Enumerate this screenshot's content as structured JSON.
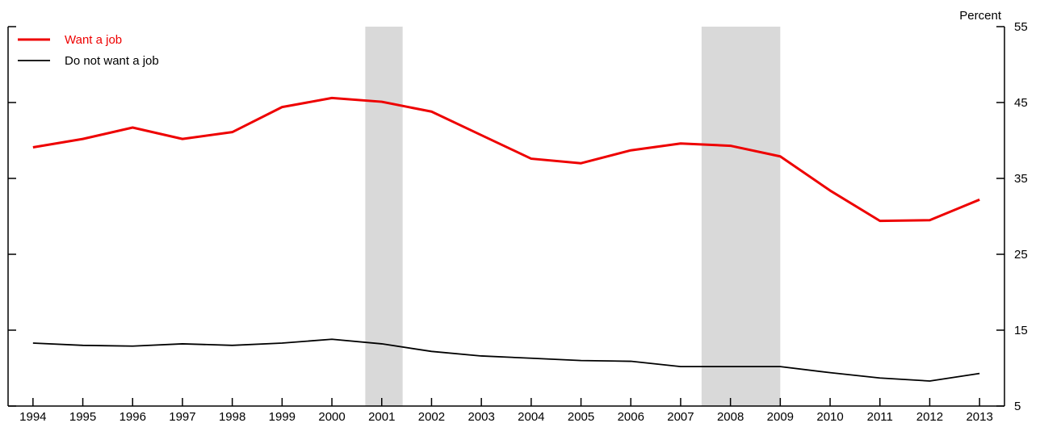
{
  "chart_data": {
    "type": "line",
    "y_axis_label": "Percent",
    "x": [
      1994,
      1995,
      1996,
      1997,
      1998,
      1999,
      2000,
      2001,
      2002,
      2003,
      2004,
      2005,
      2006,
      2007,
      2008,
      2009,
      2010,
      2011,
      2012,
      2013
    ],
    "xlim": [
      1993.5,
      2013.5
    ],
    "xticks": [
      1994,
      1995,
      1996,
      1997,
      1998,
      1999,
      2000,
      2001,
      2002,
      2003,
      2004,
      2005,
      2006,
      2007,
      2008,
      2009,
      2010,
      2011,
      2012,
      2013
    ],
    "ylim": [
      5,
      55
    ],
    "yticks": [
      5,
      15,
      25,
      35,
      45,
      55
    ],
    "grid": false,
    "legend": "upper left",
    "recessions": [
      [
        2000.67,
        2001.42
      ],
      [
        2007.42,
        2009.0
      ]
    ],
    "recession_color": "#d9d9d9",
    "series": [
      {
        "name": "Want a job",
        "color": "#ee0000",
        "width": 3,
        "values": [
          39.1,
          40.2,
          41.7,
          40.2,
          41.1,
          44.4,
          45.6,
          45.1,
          43.8,
          40.7,
          37.6,
          37.0,
          38.7,
          39.6,
          39.3,
          37.9,
          33.4,
          29.4,
          29.5,
          32.2
        ]
      },
      {
        "name": "Do not want a job",
        "color": "#000000",
        "width": 1.8,
        "values": [
          13.3,
          13.0,
          12.9,
          13.2,
          13.0,
          13.3,
          13.8,
          13.2,
          12.2,
          11.6,
          11.3,
          11.0,
          10.9,
          10.2,
          10.2,
          10.2,
          9.4,
          8.7,
          8.3,
          9.3
        ]
      }
    ]
  }
}
